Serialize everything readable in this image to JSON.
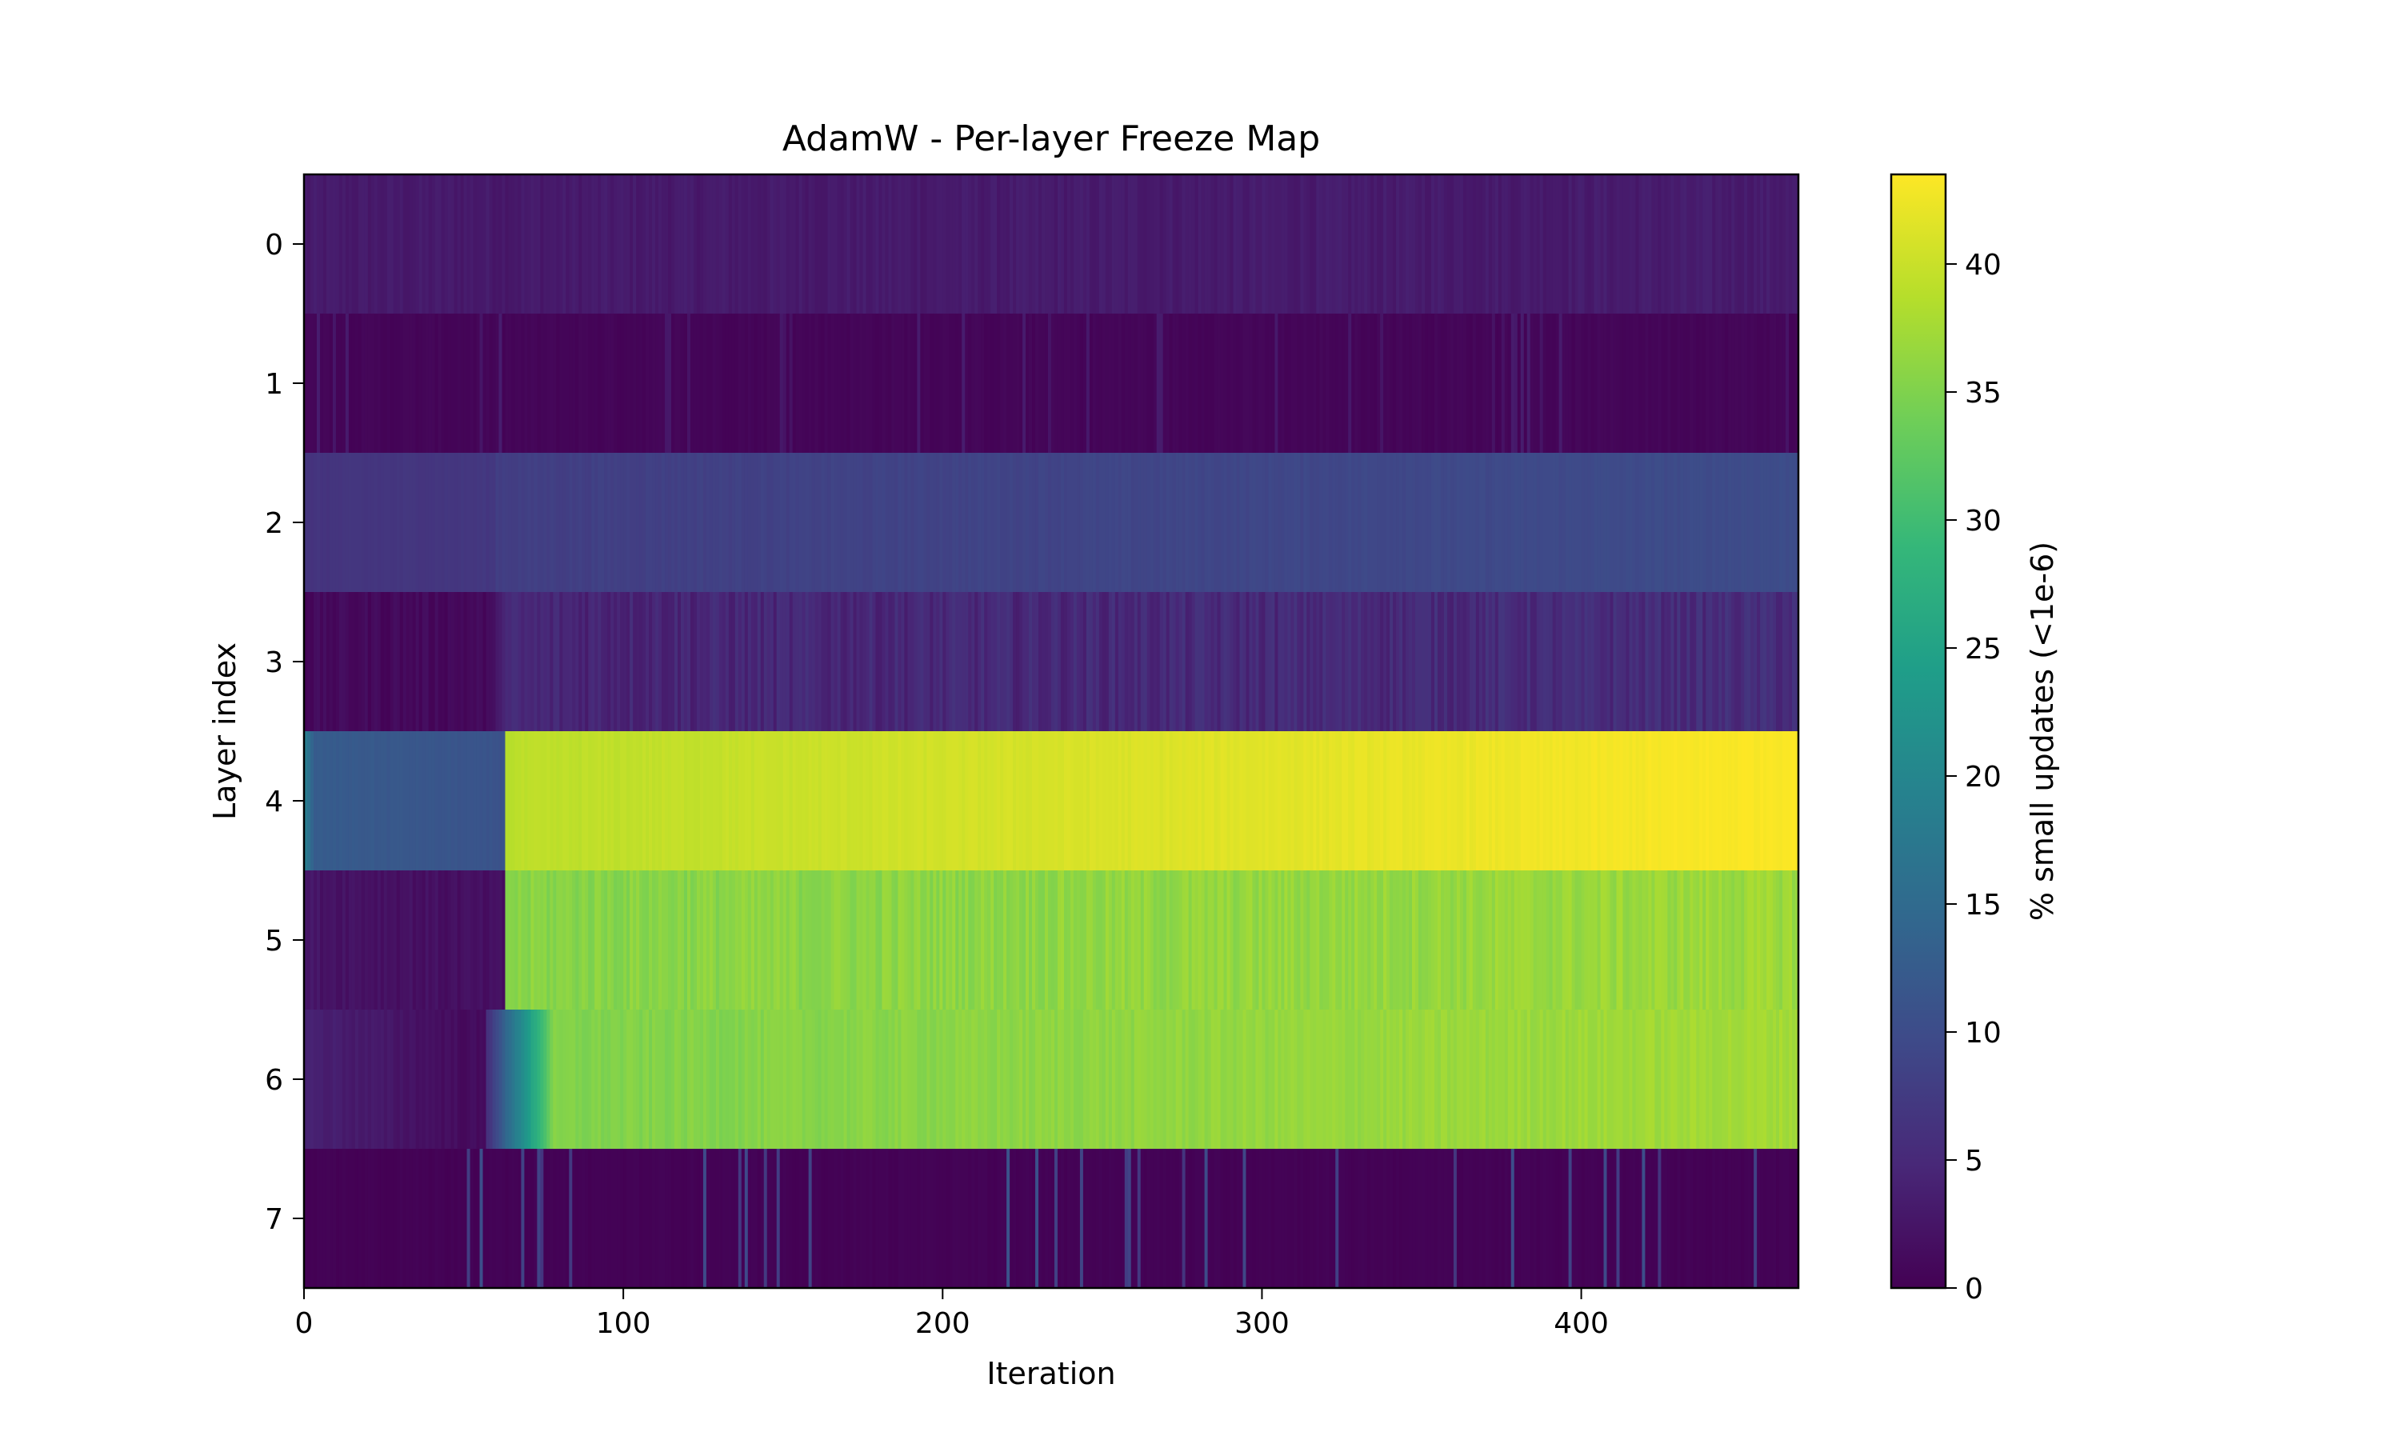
{
  "chart_data": {
    "type": "heatmap",
    "title": "AdamW - Per-layer Freeze Map",
    "xlabel": "Iteration",
    "ylabel": "Layer index",
    "xlim": [
      0,
      468
    ],
    "x_ticks": [
      "0",
      "100",
      "200",
      "300",
      "400"
    ],
    "x_tick_values": [
      0,
      100,
      200,
      300,
      400
    ],
    "y_categories": [
      "0",
      "1",
      "2",
      "3",
      "4",
      "5",
      "6",
      "7"
    ],
    "colormap": "viridis",
    "colorbar": {
      "label": "% small updates (<1e-6)",
      "range": [
        0,
        43.5
      ],
      "ticks": [
        "0",
        "5",
        "10",
        "15",
        "20",
        "25",
        "30",
        "35",
        "40"
      ],
      "tick_values": [
        0,
        5,
        10,
        15,
        20,
        25,
        30,
        35,
        40
      ]
    },
    "grid": false,
    "rows": [
      {
        "layer": 0,
        "segments": [
          {
            "from": 0,
            "to": 468,
            "start": 3.0,
            "end": 3.3,
            "noise": 0.7
          }
        ]
      },
      {
        "layer": 1,
        "segments": [
          {
            "from": 0,
            "to": 468,
            "start": 0.5,
            "end": 0.6,
            "noise": 0.3,
            "spike_rate": 0.06,
            "spike_value": 3.5
          }
        ]
      },
      {
        "layer": 2,
        "segments": [
          {
            "from": 0,
            "to": 60,
            "start": 6.5,
            "end": 7.0,
            "noise": 0.3
          },
          {
            "from": 60,
            "to": 468,
            "start": 8.0,
            "end": 10.0,
            "noise": 0.4
          }
        ]
      },
      {
        "layer": 3,
        "segments": [
          {
            "from": 0,
            "to": 60,
            "start": 1.0,
            "end": 1.0,
            "noise": 0.8
          },
          {
            "from": 60,
            "to": 468,
            "start": 4.5,
            "end": 5.5,
            "noise": 1.5
          }
        ]
      },
      {
        "layer": 4,
        "segments": [
          {
            "from": 0,
            "to": 3,
            "start": 18.0,
            "end": 14.0,
            "noise": 0.5
          },
          {
            "from": 3,
            "to": 63,
            "start": 12.5,
            "end": 11.0,
            "noise": 0.3
          },
          {
            "from": 63,
            "to": 468,
            "start": 39.0,
            "end": 43.5,
            "noise": 0.4
          }
        ]
      },
      {
        "layer": 5,
        "segments": [
          {
            "from": 0,
            "to": 63,
            "start": 2.5,
            "end": 1.5,
            "noise": 0.8
          },
          {
            "from": 63,
            "to": 468,
            "start": 35.5,
            "end": 37.0,
            "noise": 1.2
          }
        ]
      },
      {
        "layer": 6,
        "segments": [
          {
            "from": 0,
            "to": 57,
            "start": 4.0,
            "end": 1.0,
            "noise": 0.6
          },
          {
            "from": 57,
            "to": 78,
            "start": 6.0,
            "end": 34.0,
            "noise": 0.5
          },
          {
            "from": 78,
            "to": 468,
            "start": 35.0,
            "end": 37.5,
            "noise": 0.8
          }
        ]
      },
      {
        "layer": 7,
        "segments": [
          {
            "from": 0,
            "to": 468,
            "start": 0.2,
            "end": 0.2,
            "noise": 0.2,
            "spike_rate": 0.05,
            "spike_value": 11.0
          }
        ]
      }
    ]
  }
}
